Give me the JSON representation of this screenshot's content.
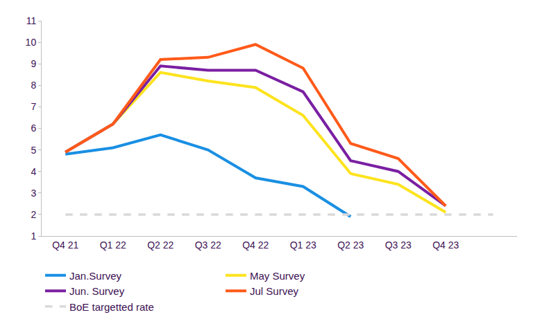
{
  "chart_data": {
    "type": "line",
    "categories": [
      "Q4 21",
      "Q1 22",
      "Q2 22",
      "Q3 22",
      "Q4 22",
      "Q1 23",
      "Q2 23",
      "Q3 23",
      "Q4 23",
      null
    ],
    "series": [
      {
        "name": "Jan.Survey",
        "color": "#1a8fe3",
        "line_style": "solid",
        "values": [
          4.8,
          5.1,
          5.7,
          5.0,
          3.7,
          3.3,
          1.9,
          null,
          null,
          null
        ]
      },
      {
        "name": "May Survey",
        "color": "#fde31e",
        "line_style": "solid",
        "values": [
          4.9,
          6.2,
          8.6,
          8.2,
          7.9,
          6.6,
          3.9,
          3.4,
          2.1,
          null
        ]
      },
      {
        "name": "Jun. Survey",
        "color": "#7a1fa2",
        "line_style": "solid",
        "values": [
          4.9,
          6.2,
          8.9,
          8.7,
          8.7,
          7.7,
          4.5,
          4.0,
          2.4,
          null
        ]
      },
      {
        "name": "Jul Survey",
        "color": "#ff5a1a",
        "line_style": "solid",
        "values": [
          4.9,
          6.2,
          9.2,
          9.3,
          9.9,
          8.8,
          5.3,
          4.6,
          2.4,
          null
        ]
      },
      {
        "name": "BoE targetted rate",
        "color": "#d9d9d9",
        "line_style": "dash",
        "values": [
          2,
          2,
          2,
          2,
          2,
          2,
          2,
          2,
          2,
          2
        ]
      }
    ],
    "ylim": [
      1,
      11
    ],
    "yticks": [
      1,
      2,
      3,
      4,
      5,
      6,
      7,
      8,
      9,
      10,
      11
    ],
    "grid": false,
    "legend": "bottom"
  }
}
